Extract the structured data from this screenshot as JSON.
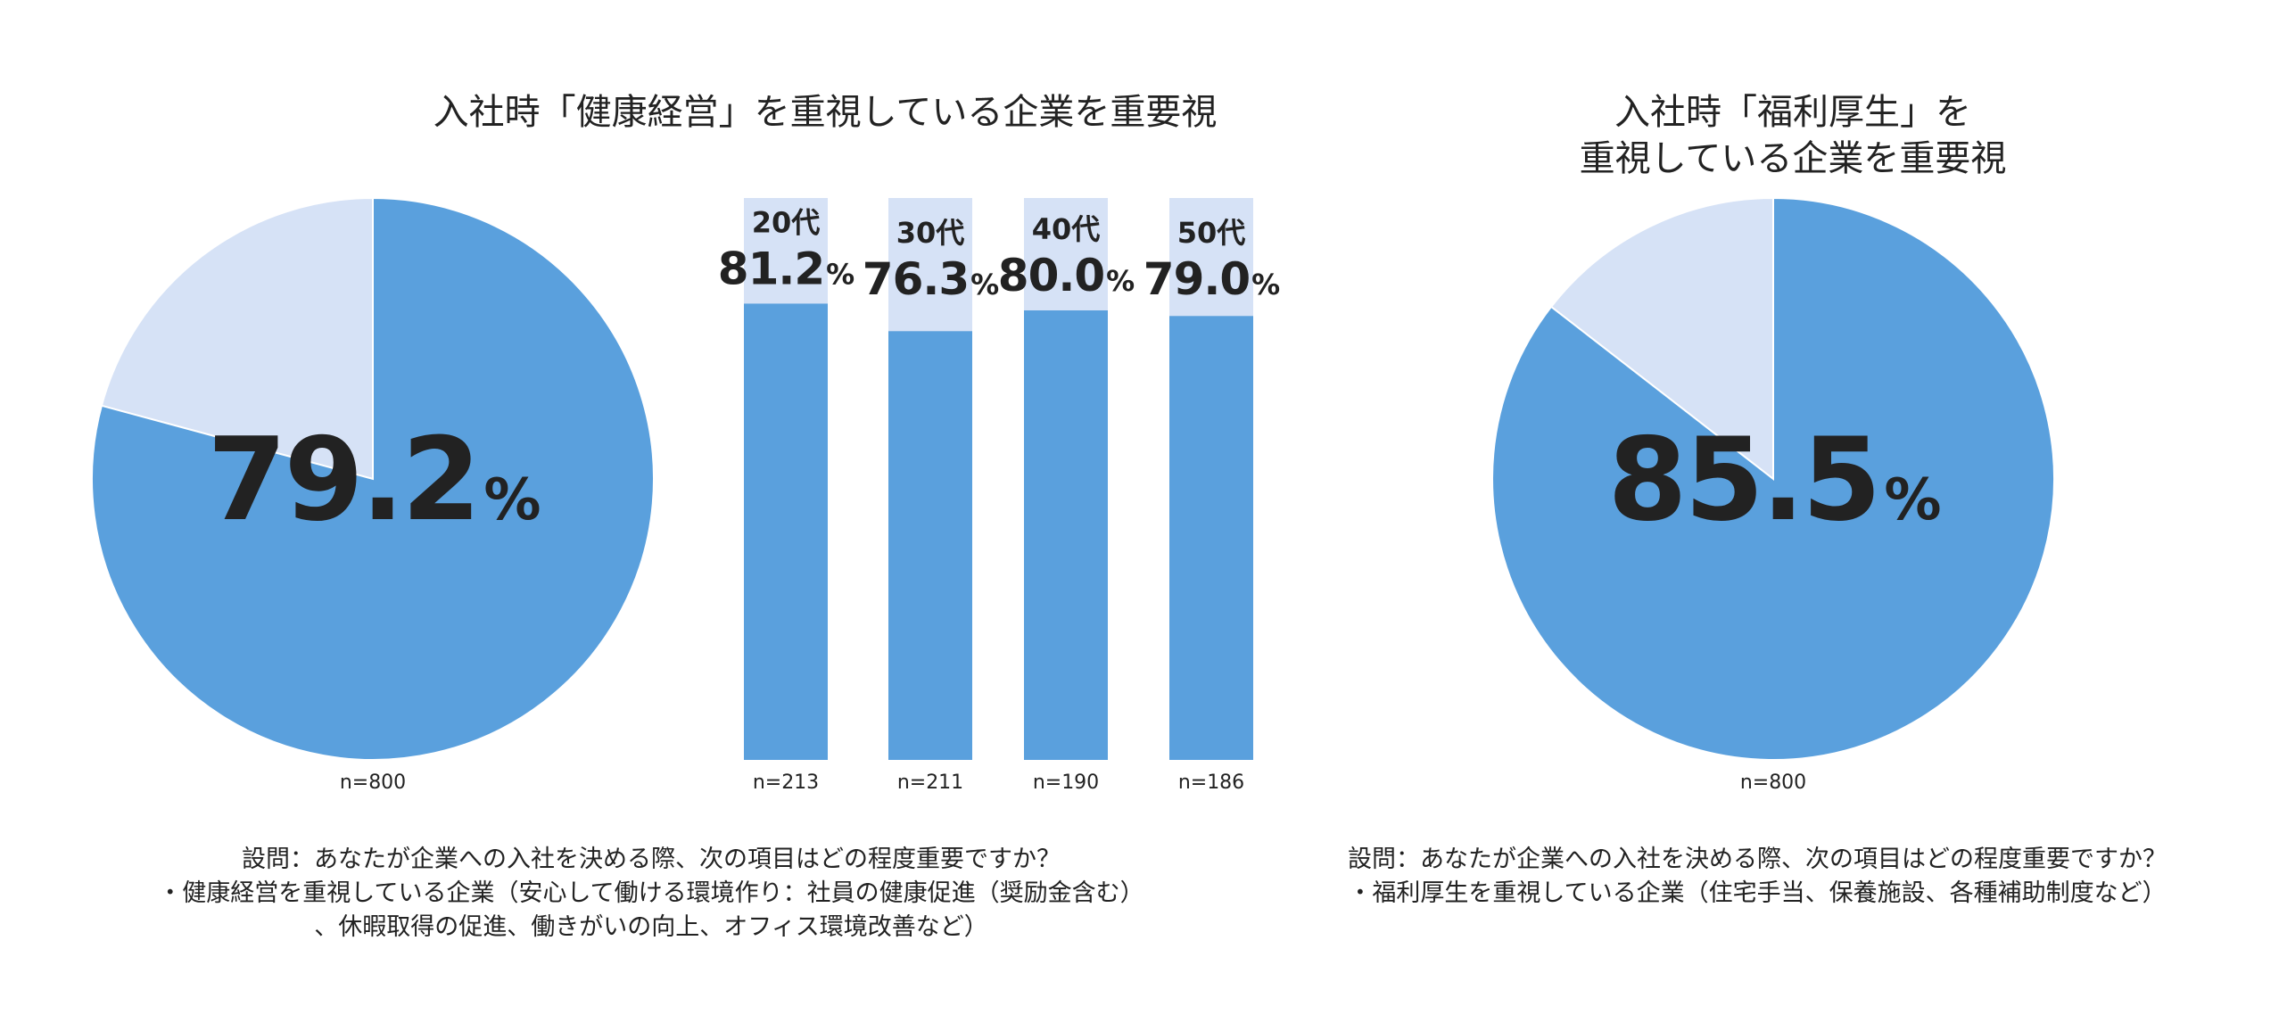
{
  "colors": {
    "accent": "#5aa0dd",
    "rest": "#d6e2f6",
    "text": "#222222"
  },
  "titles": {
    "left": "入社時「健康経営」を重視している企業を重要視",
    "right_line1": "入社時「福利厚生」を",
    "right_line2": "重視している企業を重要視"
  },
  "notes": {
    "left_line1": "設問：あなたが企業への入社を決める際、次の項目はどの程度重要ですか？",
    "left_line2": "・健康経営を重視している企業（安心して働ける環境作り：社員の健康促進（奨励金含む）",
    "left_line3": "、休暇取得の促進、働きがいの向上、オフィス環境改善など）",
    "right_line1": "設問：あなたが企業への入社を決める際、次の項目はどの程度重要ですか？",
    "right_line2": "・福利厚生を重視している企業（住宅手当、保養施設、各種補助制度など）"
  },
  "chart_data": [
    {
      "type": "pie",
      "value": 79.2,
      "value_label": "79.2",
      "unit": "%",
      "n_label": "n=800"
    },
    {
      "type": "bar",
      "categories": [
        "20代",
        "30代",
        "40代",
        "50代"
      ],
      "values": [
        81.2,
        76.3,
        80.0,
        79.0
      ],
      "value_labels": [
        "81.2",
        "76.3",
        "80.0",
        "79.0"
      ],
      "unit": "%",
      "n_labels": [
        "n=213",
        "n=211",
        "n=190",
        "n=186"
      ],
      "ylim": [
        0,
        100
      ]
    },
    {
      "type": "pie",
      "value": 85.5,
      "value_label": "85.5",
      "unit": "%",
      "n_label": "n=800"
    }
  ]
}
